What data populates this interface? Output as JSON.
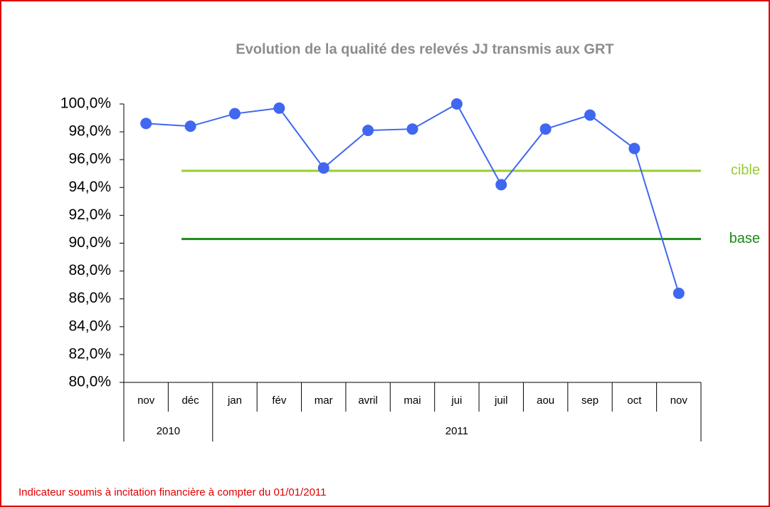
{
  "chart_data": {
    "type": "line",
    "title": "Evolution de la qualité des relevés JJ  transmis aux GRT",
    "categories": [
      "nov",
      "déc",
      "jan",
      "fév",
      "mar",
      "avril",
      "mai",
      "jui",
      "juil",
      "aou",
      "sep",
      "oct",
      "nov"
    ],
    "category_groups": [
      {
        "label": "2010",
        "span": 2
      },
      {
        "label": "2011",
        "span": 11
      }
    ],
    "series": [
      {
        "name": null,
        "color": "#3f67f0",
        "values": [
          98.6,
          98.4,
          99.3,
          99.7,
          95.4,
          98.1,
          98.2,
          100.0,
          94.2,
          98.2,
          99.2,
          96.8,
          86.4
        ]
      }
    ],
    "reference_lines": [
      {
        "name": "cible",
        "value": 95.2,
        "color": "#99cc33"
      },
      {
        "name": "base",
        "value": 90.3,
        "color": "#1a8a1a"
      }
    ],
    "ylim": [
      80,
      100
    ],
    "yticks": [
      {
        "value": 80,
        "label": "80,0%"
      },
      {
        "value": 82,
        "label": "82,0%"
      },
      {
        "value": 84,
        "label": "84,0%"
      },
      {
        "value": 86,
        "label": "86,0%"
      },
      {
        "value": 88,
        "label": "88,0%"
      },
      {
        "value": 90,
        "label": "90,0%"
      },
      {
        "value": 92,
        "label": "92,0%"
      },
      {
        "value": 94,
        "label": "94,0%"
      },
      {
        "value": 96,
        "label": "96,0%"
      },
      {
        "value": 98,
        "label": "98,0%"
      },
      {
        "value": 100,
        "label": "100,0%"
      }
    ],
    "footnote": "Indicateur soumis à incitation financière à compter du 01/01/2011"
  }
}
